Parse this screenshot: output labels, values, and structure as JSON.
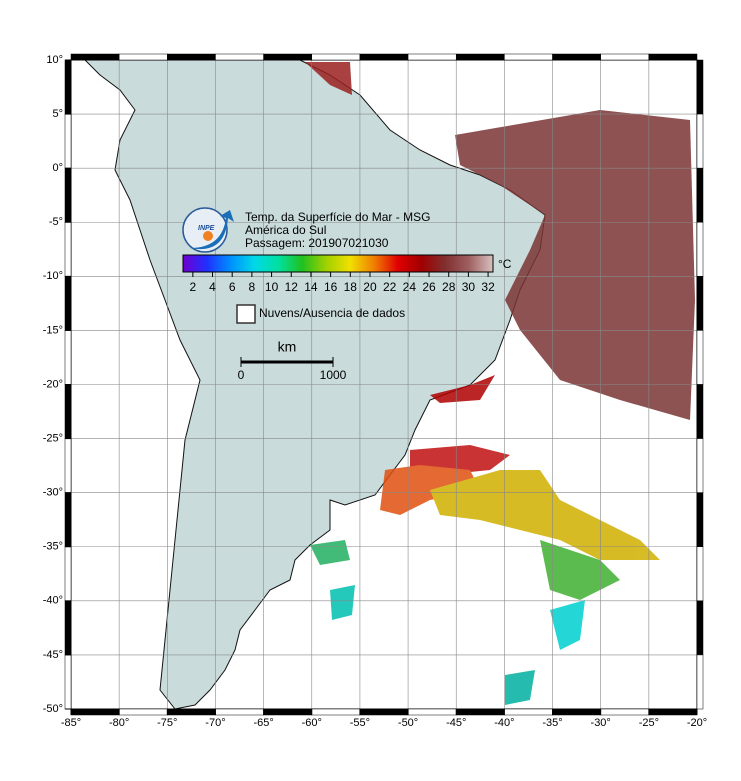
{
  "map": {
    "xlim": [
      -85,
      -20
    ],
    "ylim": [
      -50,
      10
    ],
    "xticks": [
      {
        "value": -85,
        "label": "-85°"
      },
      {
        "value": -80,
        "label": "-80°"
      },
      {
        "value": -75,
        "label": "-75°"
      },
      {
        "value": -70,
        "label": "-70°"
      },
      {
        "value": -65,
        "label": "-65°"
      },
      {
        "value": -60,
        "label": "-60°"
      },
      {
        "value": -55,
        "label": "-55°"
      },
      {
        "value": -50,
        "label": "-50°"
      },
      {
        "value": -45,
        "label": "-45°"
      },
      {
        "value": -40,
        "label": "-40°"
      },
      {
        "value": -35,
        "label": "-35°"
      },
      {
        "value": -30,
        "label": "-30°"
      },
      {
        "value": -25,
        "label": "-25°"
      },
      {
        "value": -20,
        "label": "-20°"
      }
    ],
    "yticks": [
      {
        "value": 10,
        "label": "10°"
      },
      {
        "value": 5,
        "label": "5°"
      },
      {
        "value": 0,
        "label": "0°"
      },
      {
        "value": -5,
        "label": "-5°"
      },
      {
        "value": -10,
        "label": "-10°"
      },
      {
        "value": -15,
        "label": "-15°"
      },
      {
        "value": -20,
        "label": "-20°"
      },
      {
        "value": -25,
        "label": "-25°"
      },
      {
        "value": -30,
        "label": "-30°"
      },
      {
        "value": -35,
        "label": "-35°"
      },
      {
        "value": -40,
        "label": "-40°"
      },
      {
        "value": -45,
        "label": "-45°"
      },
      {
        "value": -50,
        "label": "-50°"
      }
    ],
    "grid": true
  },
  "legend": {
    "logo": "INPE",
    "title_lines": [
      "Temp. da Superfície do Mar - MSG",
      "América do Sul",
      "Passagem: 201907021030"
    ],
    "colorbar": {
      "lim": [
        1,
        32.5
      ],
      "ticks": [
        2,
        4,
        6,
        8,
        10,
        12,
        14,
        16,
        18,
        20,
        22,
        24,
        26,
        28,
        30,
        32
      ],
      "unit": "°C",
      "colors": [
        "#7000d0",
        "#2030ff",
        "#0090ff",
        "#00d8e8",
        "#00e0a0",
        "#20c020",
        "#a0d000",
        "#f0e000",
        "#f08000",
        "#e00000",
        "#a00000",
        "#803030",
        "#a06060",
        "#d8c0c0"
      ]
    },
    "no_data_label": "Nuvens/Ausencia de dados",
    "scale": {
      "unit": "km",
      "lim": [
        0,
        1000
      ],
      "ticks": [
        0,
        1000
      ]
    }
  }
}
